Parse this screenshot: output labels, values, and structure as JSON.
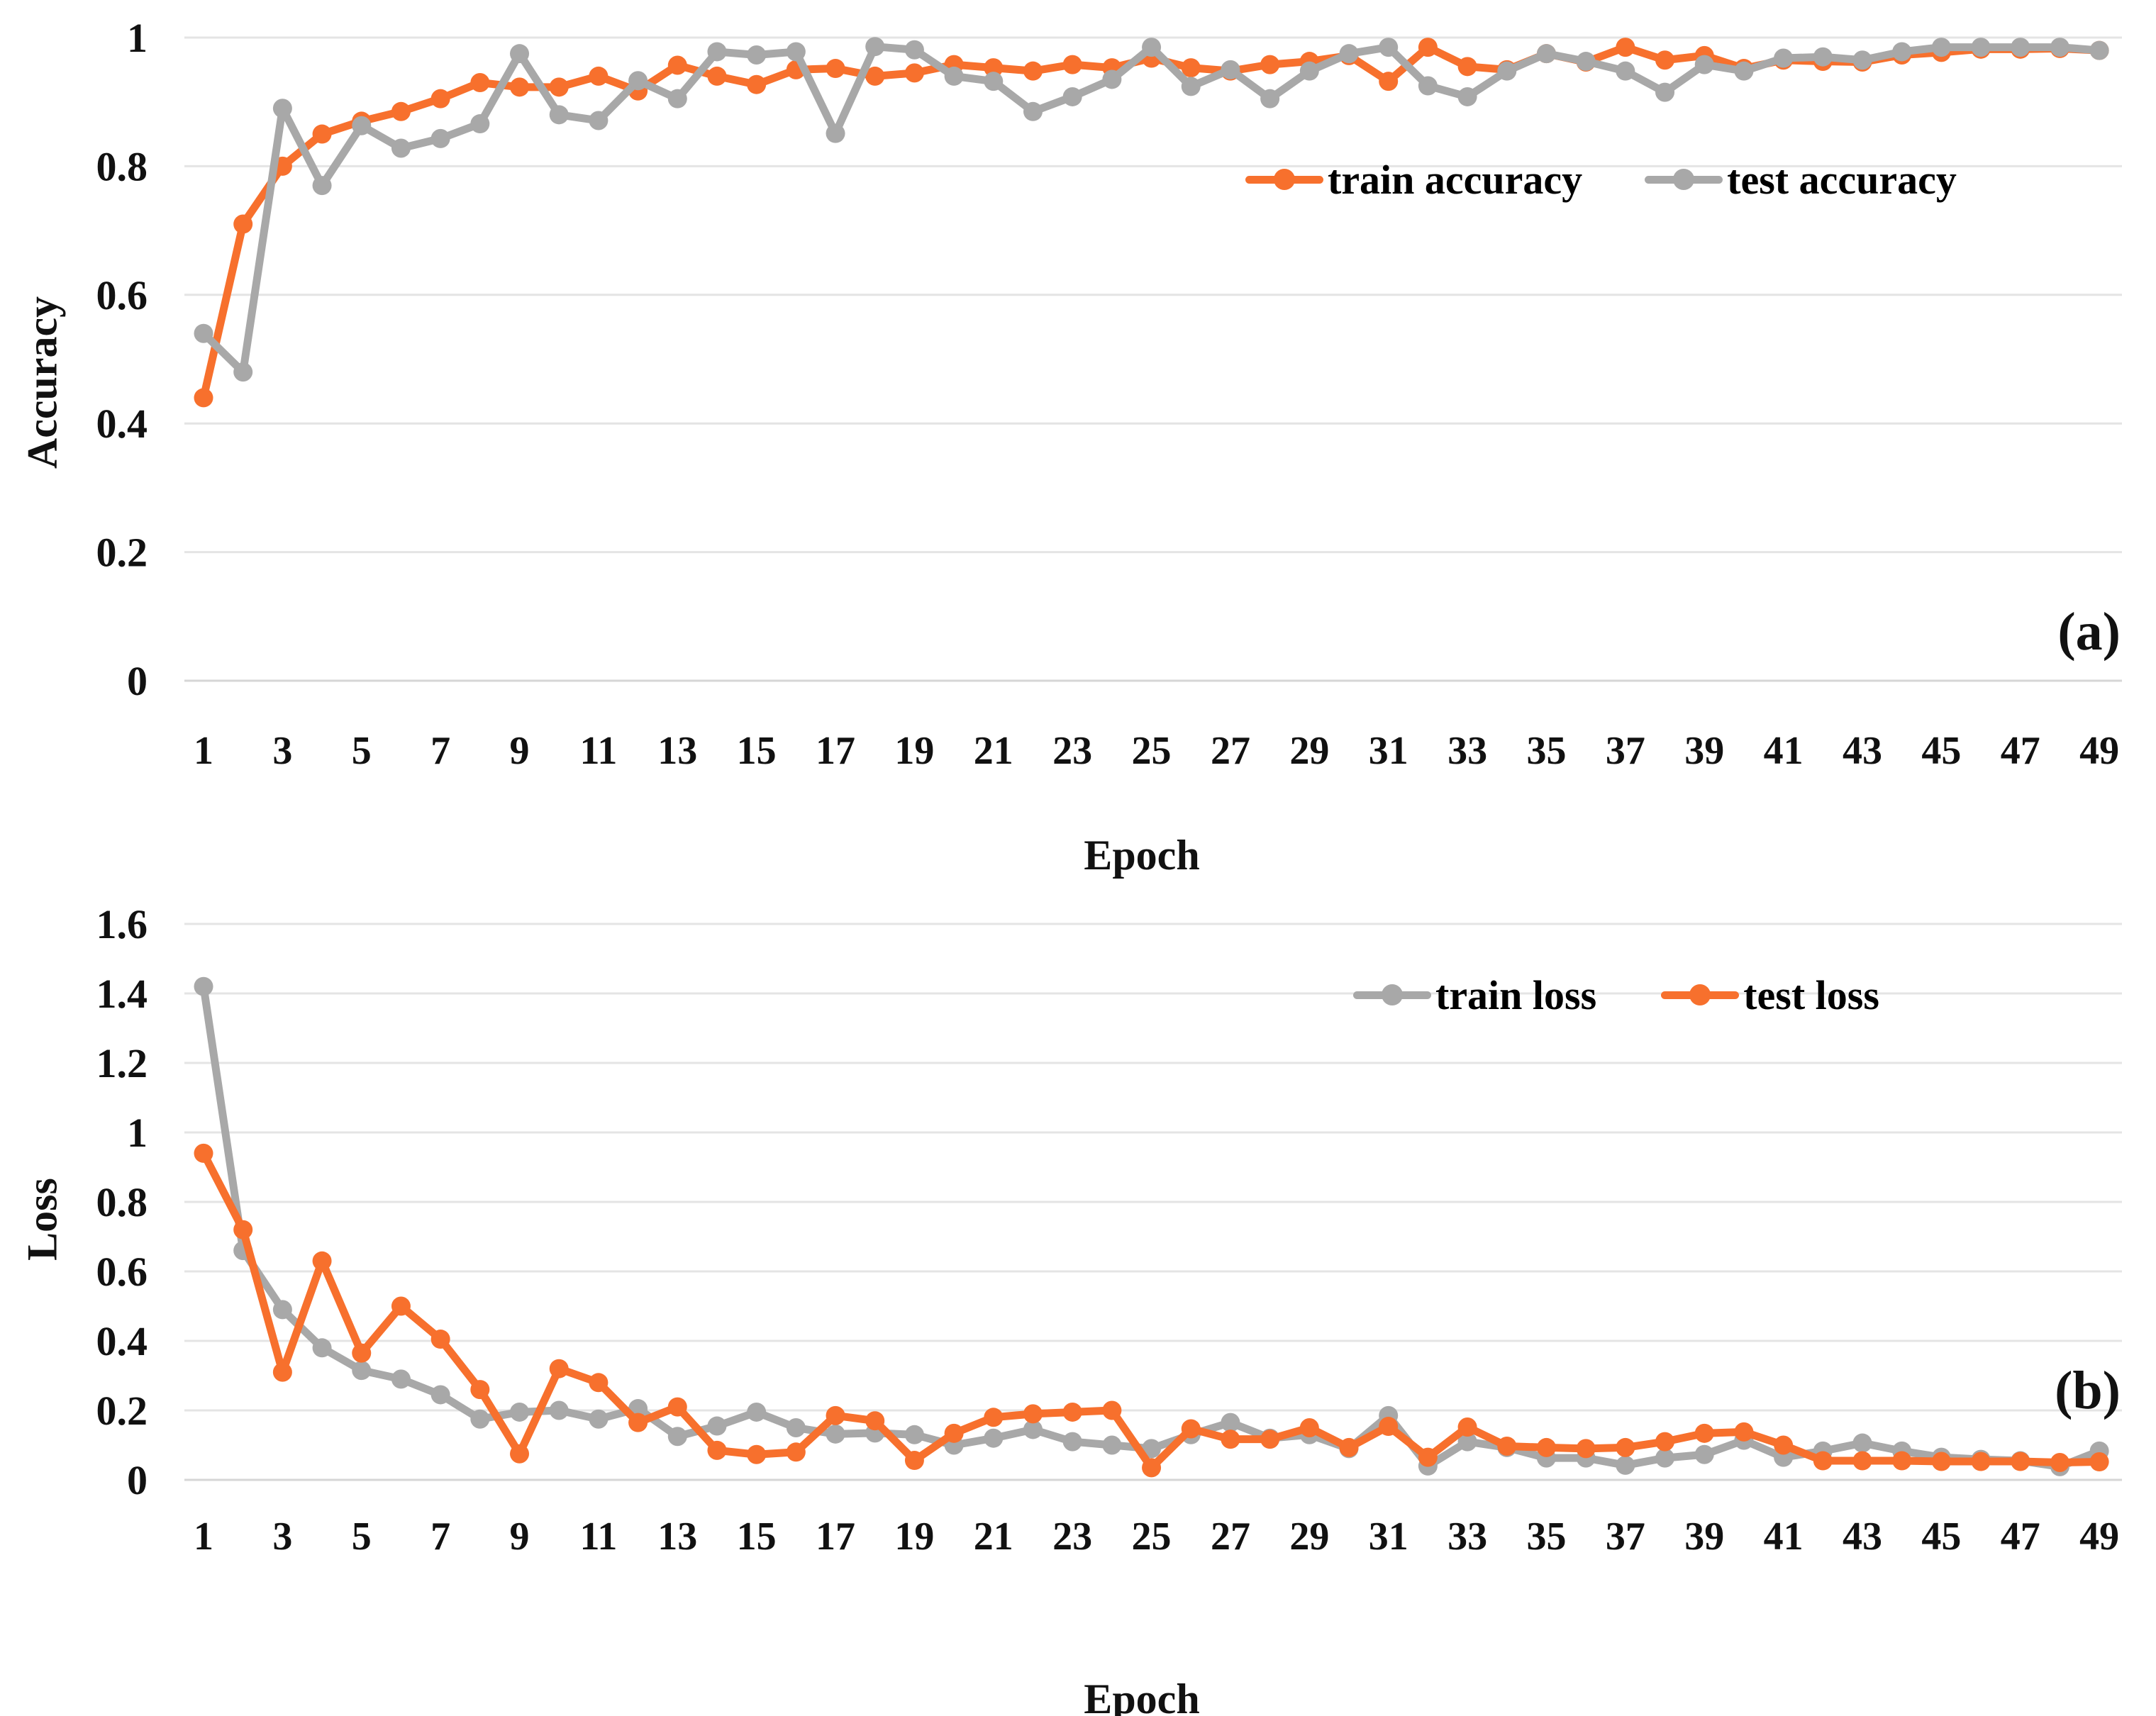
{
  "page": {
    "background": "#FFFFFF"
  },
  "colors": {
    "accent_orange": "#F7702D",
    "series_gray": "#A8A8A8",
    "gridline": "#E4E4E4",
    "zero_line": "#D6D6D6",
    "text": "#111111"
  },
  "chart_data": [
    {
      "id": "accuracy",
      "type": "line",
      "panel_label": "(a)",
      "xlabel": "Epoch",
      "ylabel": "Accuracy",
      "ylim": [
        0,
        1
      ],
      "yticks": [
        0,
        0.2,
        0.4,
        0.6,
        0.8,
        1
      ],
      "ytick_labels": [
        "0",
        "0.2",
        "0.4",
        "0.6",
        "0.8",
        "1"
      ],
      "x": [
        1,
        2,
        3,
        4,
        5,
        6,
        7,
        8,
        9,
        10,
        11,
        12,
        13,
        14,
        15,
        16,
        17,
        18,
        19,
        20,
        21,
        22,
        23,
        24,
        25,
        26,
        27,
        28,
        29,
        30,
        31,
        32,
        33,
        34,
        35,
        36,
        37,
        38,
        39,
        40,
        41,
        42,
        43,
        44,
        45,
        46,
        47,
        48,
        49
      ],
      "x_tick_labels": [
        "1",
        "3",
        "5",
        "7",
        "9",
        "11",
        "13",
        "15",
        "17",
        "19",
        "21",
        "23",
        "25",
        "27",
        "29",
        "31",
        "33",
        "35",
        "37",
        "39",
        "41",
        "43",
        "45",
        "47",
        "49"
      ],
      "grid": true,
      "legend_position": "inside-top-right",
      "series": [
        {
          "name": "train accuracy",
          "color": "#F7702D",
          "values": [
            0.44,
            0.71,
            0.8,
            0.85,
            0.87,
            0.885,
            0.905,
            0.93,
            0.923,
            0.923,
            0.94,
            0.917,
            0.957,
            0.94,
            0.927,
            0.95,
            0.952,
            0.94,
            0.945,
            0.958,
            0.953,
            0.948,
            0.958,
            0.953,
            0.968,
            0.953,
            0.948,
            0.958,
            0.963,
            0.972,
            0.932,
            0.985,
            0.955,
            0.95,
            0.975,
            0.962,
            0.985,
            0.965,
            0.972,
            0.952,
            0.965,
            0.963,
            0.962,
            0.973,
            0.977,
            0.982,
            0.982,
            0.983,
            0.98
          ]
        },
        {
          "name": "test accuracy",
          "color": "#A8A8A8",
          "values": [
            0.54,
            0.48,
            0.89,
            0.77,
            0.863,
            0.828,
            0.843,
            0.866,
            0.975,
            0.88,
            0.871,
            0.933,
            0.905,
            0.978,
            0.973,
            0.978,
            0.851,
            0.986,
            0.981,
            0.94,
            0.932,
            0.885,
            0.908,
            0.935,
            0.985,
            0.924,
            0.95,
            0.905,
            0.948,
            0.975,
            0.985,
            0.925,
            0.908,
            0.948,
            0.975,
            0.963,
            0.948,
            0.915,
            0.958,
            0.948,
            0.968,
            0.97,
            0.965,
            0.978,
            0.985,
            0.985,
            0.985,
            0.985,
            0.98
          ]
        }
      ]
    },
    {
      "id": "loss",
      "type": "line",
      "panel_label": "(b)",
      "xlabel": "Epoch",
      "ylabel": "Loss",
      "ylim": [
        0,
        1.6
      ],
      "yticks": [
        0,
        0.2,
        0.4,
        0.6,
        0.8,
        1,
        1.2,
        1.4,
        1.6
      ],
      "ytick_labels": [
        "0",
        "0.2",
        "0.4",
        "0.6",
        "0.8",
        "1",
        "1.2",
        "1.4",
        "1.6"
      ],
      "x": [
        1,
        2,
        3,
        4,
        5,
        6,
        7,
        8,
        9,
        10,
        11,
        12,
        13,
        14,
        15,
        16,
        17,
        18,
        19,
        20,
        21,
        22,
        23,
        24,
        25,
        26,
        27,
        28,
        29,
        30,
        31,
        32,
        33,
        34,
        35,
        36,
        37,
        38,
        39,
        40,
        41,
        42,
        43,
        44,
        45,
        46,
        47,
        48,
        49
      ],
      "x_tick_labels": [
        "1",
        "3",
        "5",
        "7",
        "9",
        "11",
        "13",
        "15",
        "17",
        "19",
        "21",
        "23",
        "25",
        "27",
        "29",
        "31",
        "33",
        "35",
        "37",
        "39",
        "41",
        "43",
        "45",
        "47",
        "49"
      ],
      "grid": true,
      "legend_position": "inside-top-right",
      "series": [
        {
          "name": "train loss",
          "color": "#A8A8A8",
          "values": [
            1.42,
            0.66,
            0.49,
            0.38,
            0.315,
            0.29,
            0.245,
            0.175,
            0.195,
            0.2,
            0.175,
            0.205,
            0.125,
            0.155,
            0.195,
            0.15,
            0.132,
            0.135,
            0.13,
            0.1,
            0.12,
            0.145,
            0.11,
            0.1,
            0.09,
            0.13,
            0.165,
            0.12,
            0.13,
            0.09,
            0.185,
            0.04,
            0.11,
            0.093,
            0.063,
            0.063,
            0.042,
            0.063,
            0.073,
            0.114,
            0.065,
            0.083,
            0.106,
            0.083,
            0.065,
            0.059,
            0.055,
            0.038,
            0.083
          ]
        },
        {
          "name": "test loss",
          "color": "#F7702D",
          "values": [
            0.94,
            0.72,
            0.31,
            0.63,
            0.365,
            0.5,
            0.405,
            0.26,
            0.075,
            0.32,
            0.28,
            0.165,
            0.21,
            0.085,
            0.073,
            0.08,
            0.185,
            0.17,
            0.056,
            0.134,
            0.18,
            0.19,
            0.195,
            0.2,
            0.035,
            0.147,
            0.117,
            0.117,
            0.15,
            0.093,
            0.154,
            0.065,
            0.152,
            0.097,
            0.093,
            0.09,
            0.093,
            0.11,
            0.134,
            0.138,
            0.1,
            0.055,
            0.055,
            0.055,
            0.053,
            0.053,
            0.053,
            0.05,
            0.052
          ]
        }
      ]
    }
  ]
}
